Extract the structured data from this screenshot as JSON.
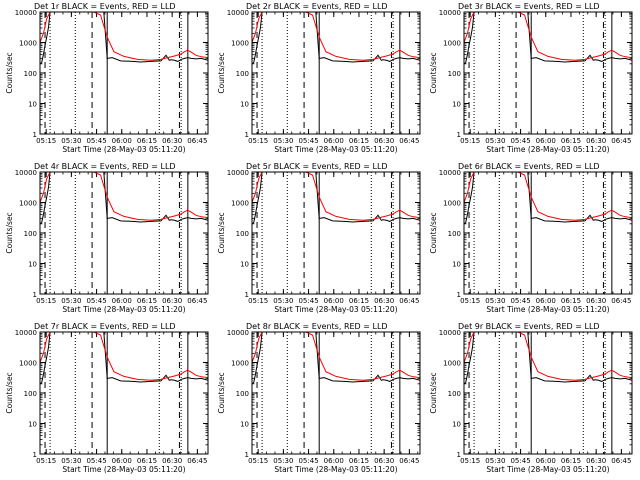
{
  "chart_data": [
    {
      "type": "line",
      "title": "Det 1r BLACK = Events, RED = LLD",
      "tag": "1r"
    },
    {
      "type": "line",
      "title": "Det 2r BLACK = Events, RED = LLD",
      "tag": "2r"
    },
    {
      "type": "line",
      "title": "Det 3r BLACK = Events, RED = LLD",
      "tag": "3r"
    },
    {
      "type": "line",
      "title": "Det 4r BLACK = Events, RED = LLD",
      "tag": "4r"
    },
    {
      "type": "line",
      "title": "Det 5r BLACK = Events, RED = LLD",
      "tag": "5r"
    },
    {
      "type": "line",
      "title": "Det 6r BLACK = Events, RED = LLD",
      "tag": "6r"
    },
    {
      "type": "line",
      "title": "Det 7r BLACK = Events, RED = LLD",
      "tag": "7r"
    },
    {
      "type": "line",
      "title": "Det 8r BLACK = Events, RED = LLD",
      "tag": "8r"
    },
    {
      "type": "line",
      "title": "Det 9r BLACK = Events, RED = LLD",
      "tag": "9r"
    }
  ],
  "shared": {
    "xlabel": "Start Time (28-May-03 05:11:20)",
    "ylabel": "Counts/sec",
    "ylim": [
      1,
      10000
    ],
    "yscale": "log",
    "yticks": [
      1,
      10,
      100,
      1000,
      10000
    ],
    "ytick_labels": [
      "1",
      "10",
      "100",
      "1000",
      "10000"
    ],
    "xlim_minutes": [
      0,
      100
    ],
    "xticks_minutes": [
      3.67,
      18.67,
      33.67,
      48.67,
      63.67,
      78.67,
      93.67
    ],
    "xtick_labels": [
      "05:15",
      "05:30",
      "05:45",
      "06:00",
      "06:15",
      "06:30",
      "06:45"
    ],
    "markers": {
      "dotted_minutes": [
        6,
        21,
        71,
        84
      ],
      "dashed_minutes": [
        3,
        31,
        83
      ],
      "solid_minutes": [
        40,
        88
      ]
    },
    "red_series": {
      "name": "LLD",
      "color": "#ff0000",
      "x": [
        0,
        2,
        4,
        6,
        8,
        10,
        12,
        16,
        20,
        25,
        28,
        32,
        36,
        40,
        44,
        50,
        58,
        66,
        72,
        76,
        80,
        84,
        86,
        88,
        90,
        93,
        96,
        100
      ],
      "y": [
        1000,
        2000,
        6000,
        10000,
        10000,
        10000,
        10000,
        10000,
        10000,
        10000,
        10000,
        10000,
        8000,
        1500,
        500,
        350,
        280,
        260,
        280,
        320,
        360,
        420,
        500,
        560,
        480,
        380,
        340,
        320
      ]
    },
    "black_series": {
      "name": "Events",
      "color": "#000000",
      "x": [
        0,
        1,
        2,
        3,
        4,
        5,
        6,
        10,
        20,
        30,
        35,
        38,
        40,
        43,
        48,
        55,
        60,
        66,
        72,
        75,
        77,
        78,
        80,
        82,
        84,
        86,
        88,
        90,
        93,
        96,
        100
      ],
      "y": [
        200,
        220,
        400,
        800,
        1500,
        3000,
        10000,
        10000,
        10000,
        10000,
        10000,
        10000,
        300,
        320,
        250,
        240,
        230,
        240,
        250,
        380,
        260,
        270,
        260,
        240,
        280,
        300,
        320,
        300,
        290,
        300,
        260
      ]
    }
  }
}
